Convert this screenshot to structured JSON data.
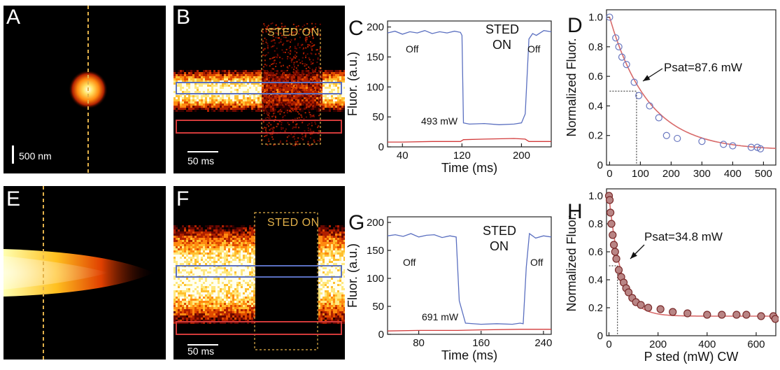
{
  "panels": {
    "A": {
      "label": "A",
      "scale": "500 nm"
    },
    "B": {
      "label": "B",
      "scale": "50 ms",
      "sted": "STED ON"
    },
    "E": {
      "label": "E"
    },
    "F": {
      "label": "F",
      "scale": "50 ms",
      "sted": "STED ON"
    }
  },
  "colors": {
    "blue": "#5a6fc0",
    "red": "#d23a3a",
    "gold": "#e2b14a",
    "fit": "#d86a6a"
  },
  "chart_data": [
    {
      "id": "C",
      "label": "C",
      "type": "line",
      "ylabel": "Fluor. (a.u.)",
      "xlabel": "Time (ms)",
      "xlim": [
        20,
        240
      ],
      "ylim": [
        0,
        210
      ],
      "xticks": [
        40,
        120,
        200
      ],
      "yticks": [
        0,
        50,
        100,
        150,
        200
      ],
      "annotations": {
        "off_left": "Off",
        "sted1": "STED",
        "sted2": "ON",
        "off_right": "Off",
        "power": "493 mW"
      },
      "series": [
        {
          "color": "blue",
          "x": [
            20,
            30,
            40,
            50,
            60,
            70,
            80,
            90,
            100,
            110,
            118,
            120,
            122,
            130,
            150,
            170,
            190,
            200,
            205,
            210,
            215,
            220,
            230,
            240
          ],
          "y": [
            190,
            193,
            188,
            192,
            190,
            194,
            189,
            192,
            190,
            193,
            191,
            186,
            40,
            38,
            39,
            37,
            38,
            40,
            55,
            180,
            189,
            186,
            194,
            192
          ]
        },
        {
          "color": "red",
          "x": [
            20,
            40,
            80,
            118,
            122,
            150,
            190,
            205,
            210,
            240
          ],
          "y": [
            8,
            8,
            9,
            9,
            12,
            13,
            14,
            13,
            9,
            9
          ]
        }
      ]
    },
    {
      "id": "D",
      "label": "D",
      "type": "scatter",
      "ylabel": "Normalized Fluor.",
      "xlabel": "",
      "xlim": [
        -10,
        540
      ],
      "ylim": [
        0,
        1.05
      ],
      "xticks": [
        0,
        100,
        200,
        300,
        400,
        500
      ],
      "yticks": [
        0,
        0.2,
        0.4,
        0.6,
        0.8,
        1.0
      ],
      "annotation": "Psat=87.6 mW",
      "psat": 87.6,
      "psat_y": 0.5,
      "points": [
        [
          0,
          1.0
        ],
        [
          20,
          0.86
        ],
        [
          30,
          0.8
        ],
        [
          40,
          0.73
        ],
        [
          55,
          0.68
        ],
        [
          80,
          0.56
        ],
        [
          95,
          0.47
        ],
        [
          130,
          0.4
        ],
        [
          160,
          0.32
        ],
        [
          185,
          0.2
        ],
        [
          220,
          0.18
        ],
        [
          300,
          0.16
        ],
        [
          370,
          0.14
        ],
        [
          400,
          0.13
        ],
        [
          460,
          0.12
        ],
        [
          480,
          0.12
        ],
        [
          490,
          0.11
        ]
      ],
      "fit": {
        "type": "exp",
        "tau": 126,
        "y0": 0.1
      }
    },
    {
      "id": "G",
      "label": "G",
      "type": "line",
      "ylabel": "Fluor. (a.u.)",
      "xlabel": "Time (ms)",
      "xlim": [
        40,
        250
      ],
      "ylim": [
        0,
        210
      ],
      "xticks": [
        80,
        160,
        240
      ],
      "yticks": [
        0,
        50,
        100,
        150,
        200
      ],
      "annotations": {
        "off_left": "Off",
        "sted1": "STED",
        "sted2": "ON",
        "off_right": "Off",
        "power": "691 mW"
      },
      "series": [
        {
          "color": "blue",
          "x": [
            40,
            50,
            60,
            70,
            80,
            90,
            100,
            110,
            120,
            128,
            132,
            140,
            160,
            180,
            200,
            210,
            214,
            218,
            222,
            230,
            240,
            250
          ],
          "y": [
            176,
            178,
            175,
            180,
            174,
            177,
            178,
            173,
            176,
            174,
            60,
            20,
            18,
            19,
            18,
            20,
            19,
            120,
            180,
            172,
            176,
            174
          ]
        },
        {
          "color": "red",
          "x": [
            40,
            80,
            130,
            160,
            210,
            250
          ],
          "y": [
            6,
            7,
            7,
            8,
            9,
            9
          ]
        }
      ]
    },
    {
      "id": "H",
      "label": "H",
      "type": "scatter",
      "ylabel": "Normalized Fluor.",
      "xlabel": "P sted (mW) CW",
      "xlim": [
        -10,
        680
      ],
      "ylim": [
        0,
        1.05
      ],
      "xticks": [
        0,
        200,
        400,
        600
      ],
      "yticks": [
        0,
        0.2,
        0.4,
        0.6,
        0.8,
        1.0
      ],
      "annotation": "Psat=34.8 mW",
      "psat": 34.8,
      "psat_y": 0.5,
      "points": [
        [
          0,
          1.0
        ],
        [
          3,
          0.97
        ],
        [
          6,
          0.88
        ],
        [
          10,
          0.8
        ],
        [
          15,
          0.72
        ],
        [
          20,
          0.65
        ],
        [
          25,
          0.6
        ],
        [
          30,
          0.55
        ],
        [
          40,
          0.47
        ],
        [
          50,
          0.42
        ],
        [
          60,
          0.38
        ],
        [
          70,
          0.34
        ],
        [
          80,
          0.31
        ],
        [
          95,
          0.27
        ],
        [
          110,
          0.24
        ],
        [
          130,
          0.22
        ],
        [
          160,
          0.2
        ],
        [
          210,
          0.19
        ],
        [
          260,
          0.17
        ],
        [
          320,
          0.16
        ],
        [
          400,
          0.15
        ],
        [
          460,
          0.15
        ],
        [
          520,
          0.15
        ],
        [
          560,
          0.15
        ],
        [
          620,
          0.14
        ],
        [
          670,
          0.14
        ],
        [
          678,
          0.12
        ]
      ],
      "fit": {
        "type": "exp",
        "tau": 50,
        "y0": 0.14
      }
    }
  ]
}
